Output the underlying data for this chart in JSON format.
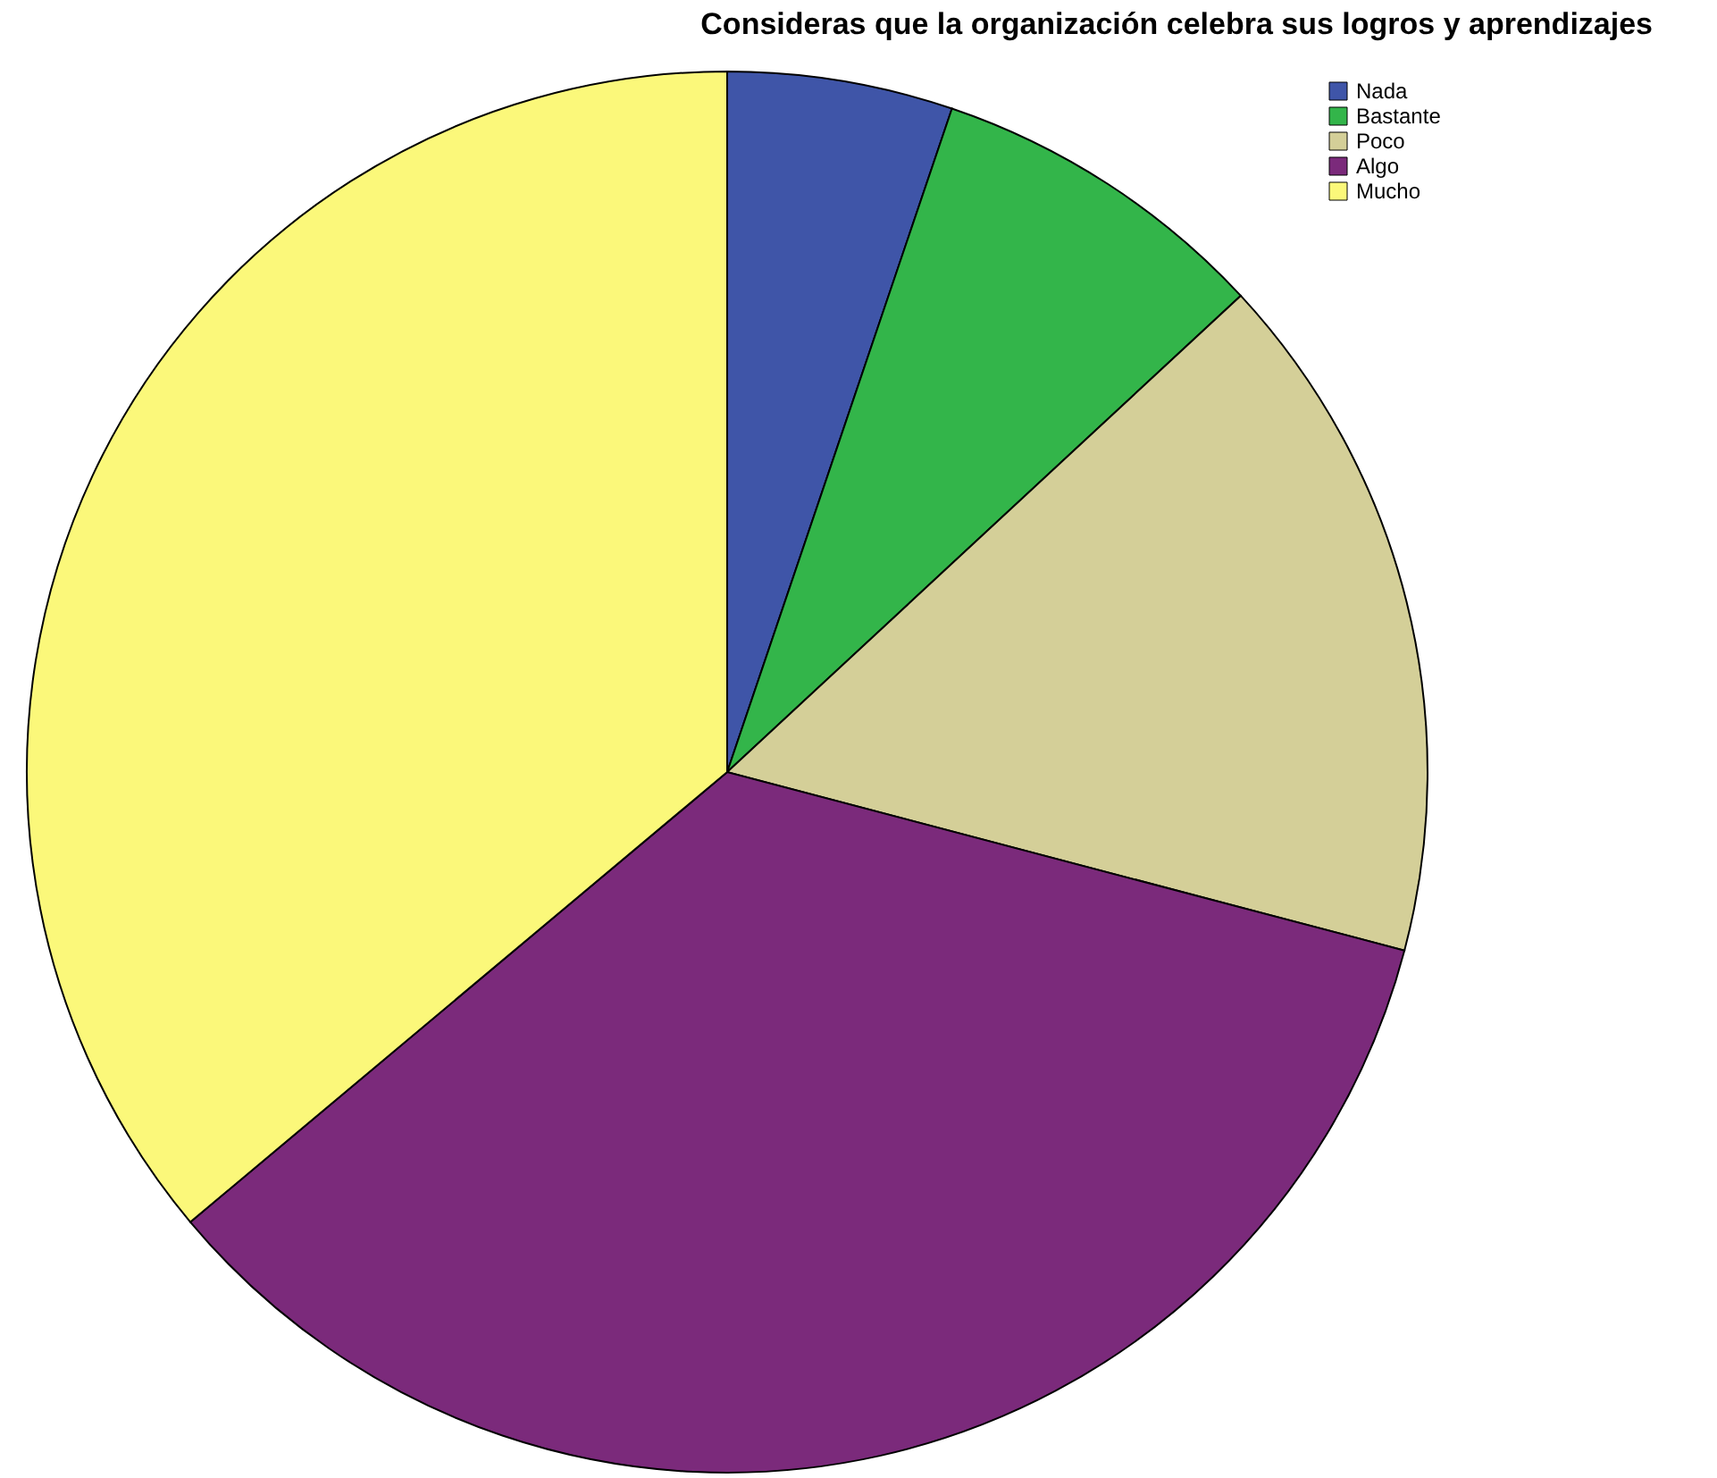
{
  "chart_data": {
    "type": "pie",
    "title": "Consideras que la organización celebra sus logros y aprendizajes",
    "categories": [
      "Nada",
      "Bastante",
      "Poco",
      "Algo",
      "Mucho"
    ],
    "values": [
      5.2,
      7.9,
      16.0,
      34.8,
      36.1
    ],
    "colors": [
      "#3f55a8",
      "#33b54a",
      "#d4cf98",
      "#7b2a7b",
      "#fbf87a"
    ],
    "legend": "top right"
  }
}
